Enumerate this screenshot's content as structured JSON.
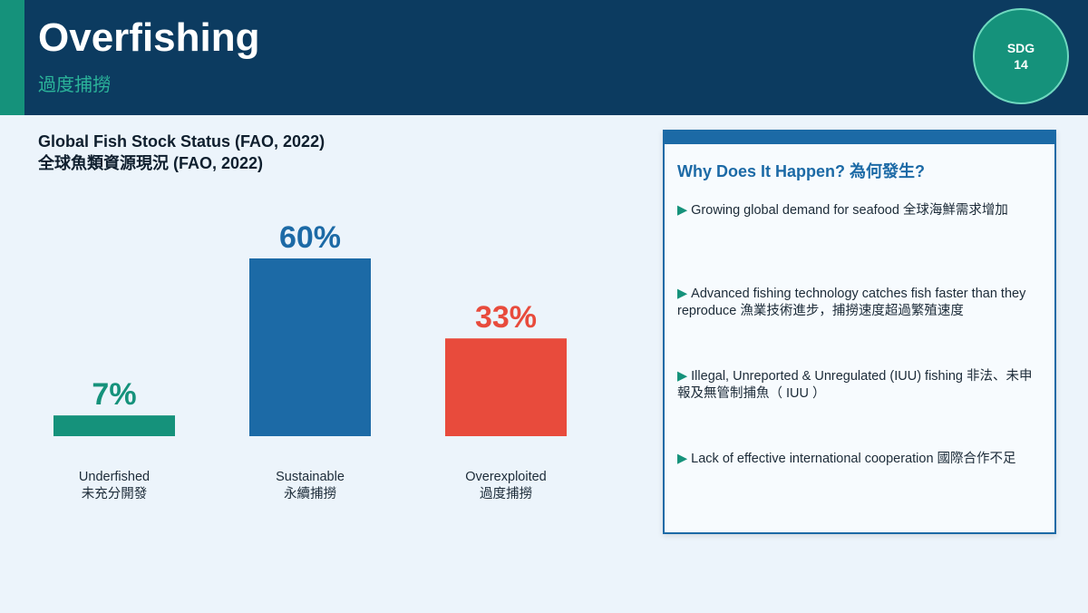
{
  "header": {
    "title": "Overfishing",
    "subtitle": "過度捕撈",
    "badge": {
      "line1": "SDG",
      "line2": "14"
    }
  },
  "chart_data": {
    "type": "bar",
    "title_en": "Global Fish Stock Status (FAO, 2022)",
    "title_zh": "全球魚類資源現況  (FAO, 2022)",
    "categories": [
      {
        "en": "Underfished",
        "zh": "未充分開發"
      },
      {
        "en": "Sustainable",
        "zh": "永續捕撈"
      },
      {
        "en": "Overexploited",
        "zh": "過度捕撈"
      }
    ],
    "values": [
      7,
      60,
      33
    ],
    "value_labels": [
      "7%",
      "60%",
      "33%"
    ],
    "colors": [
      "#15927b",
      "#1c6aa6",
      "#e84b3c"
    ],
    "ylim": [
      0,
      60
    ],
    "grid": false,
    "legend": "none"
  },
  "panel": {
    "heading": "Why Does It Happen?   為何發生?",
    "marker": "▶",
    "reasons": [
      "Growing global demand for seafood  全球海鮮需求增加",
      "Advanced fishing technology catches fish faster than they reproduce  漁業技術進步，捕撈速度超過繁殖速度",
      "Illegal, Unreported & Unregulated (IUU) fishing  非法、未申報及無管制捕魚（ IUU ）",
      "Lack of effective international cooperation  國際合作不足"
    ]
  }
}
